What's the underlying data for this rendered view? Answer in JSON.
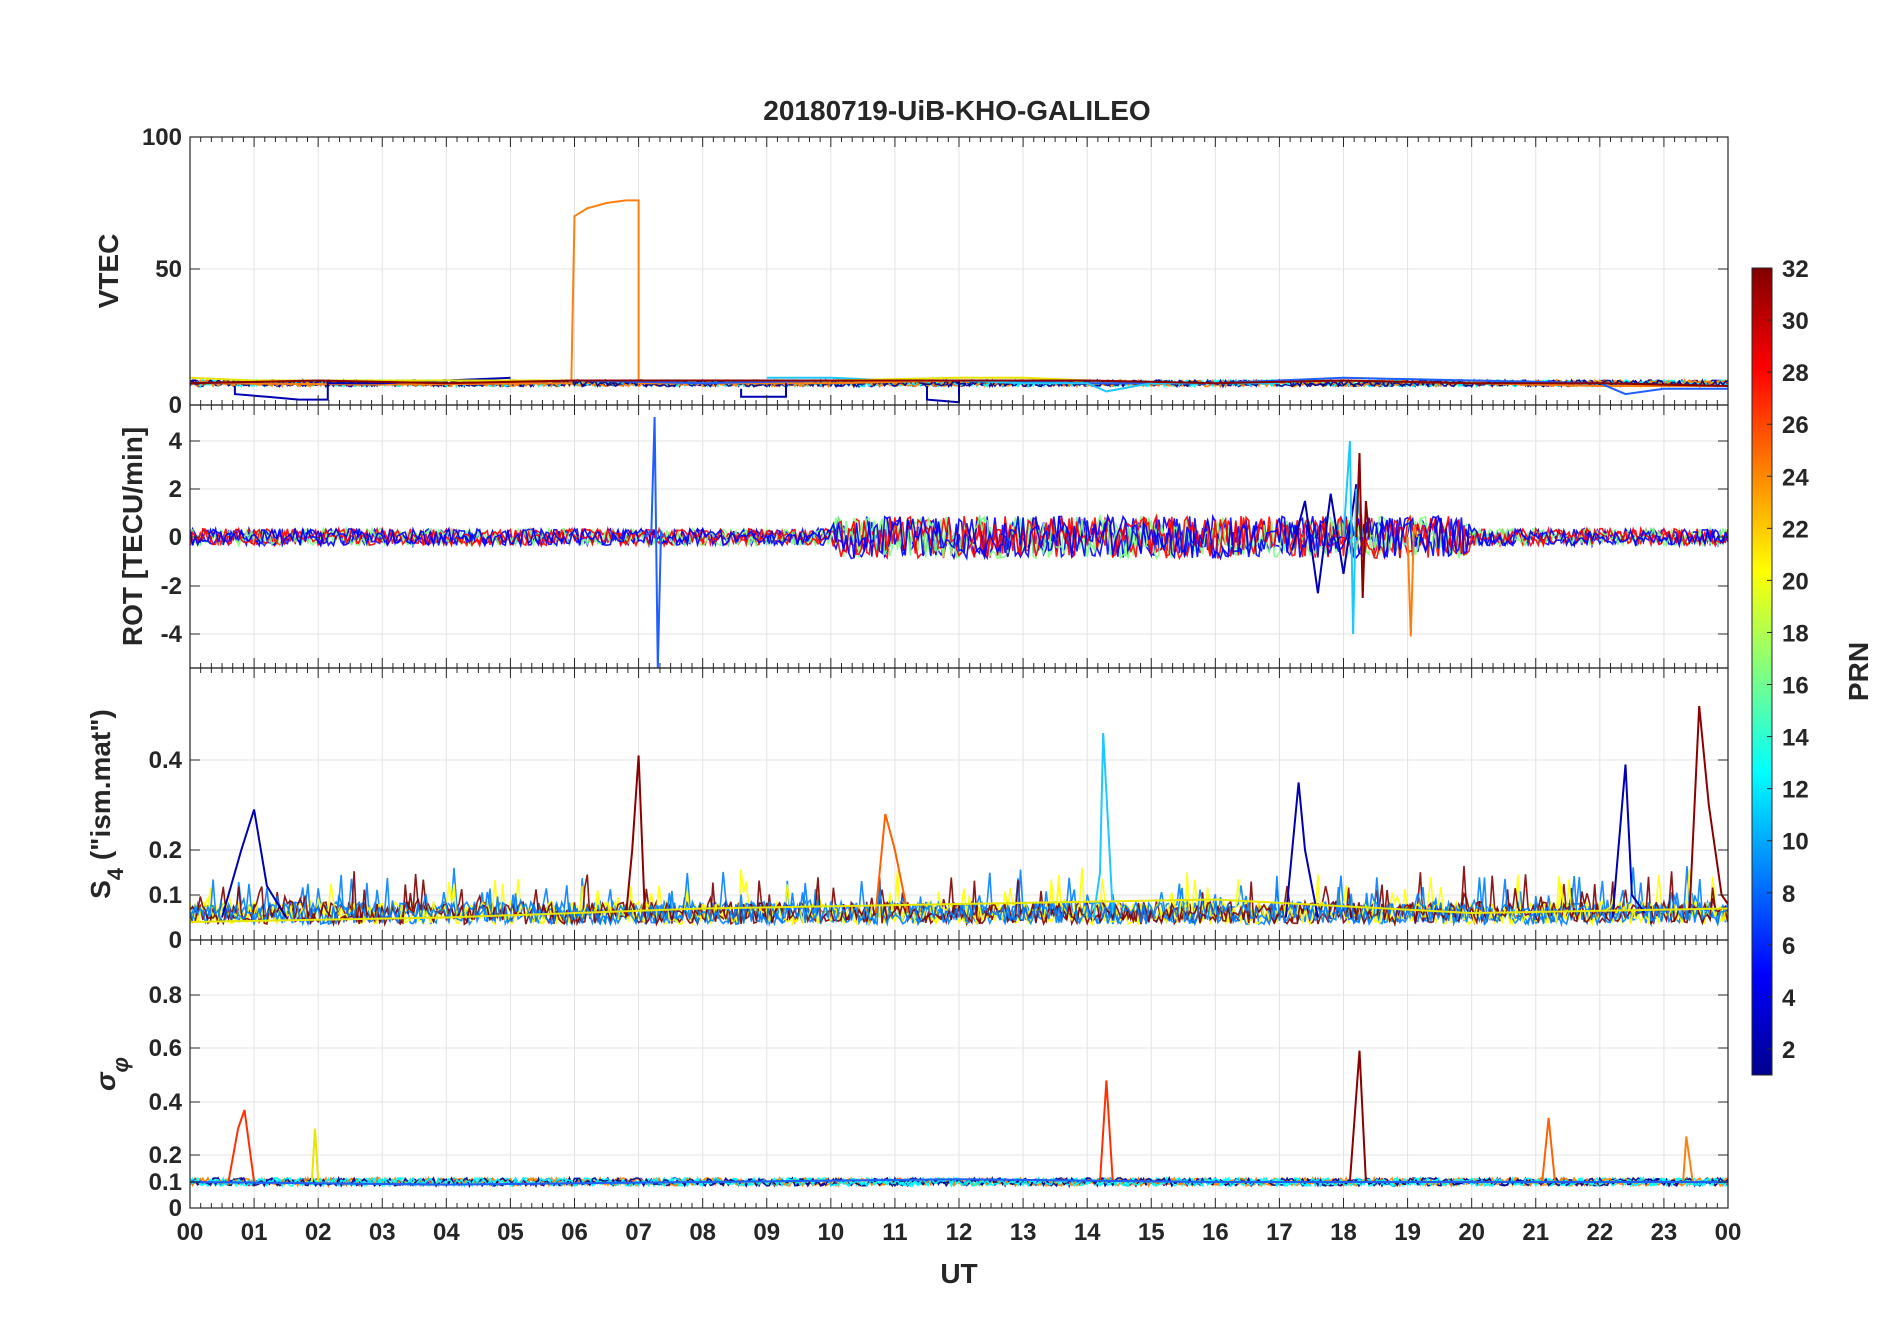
{
  "chart_data": [
    {
      "type": "line",
      "panel": "vtec",
      "title": "20180719-UiB-KHO-GALILEO",
      "ylabel": "VTEC",
      "xlim": [
        0,
        24
      ],
      "ylim": [
        0,
        100
      ],
      "yticks": [
        0,
        50,
        100
      ],
      "ytick_labels": [
        "0",
        "50",
        "100"
      ],
      "grid": true,
      "series": [
        {
          "color": "#ff7f0e",
          "x": [
            0,
            3,
            5.95,
            6.0,
            6.2,
            6.5,
            6.8,
            7.0,
            7.0,
            8,
            10,
            12,
            14,
            16,
            18,
            20,
            22,
            24
          ],
          "y": [
            8,
            7.5,
            8,
            70,
            73,
            75,
            76,
            76,
            8,
            8,
            8,
            9,
            8,
            8,
            9,
            8,
            7,
            7
          ]
        },
        {
          "color": "#0000b3",
          "x": [
            0.7,
            0.7,
            1.2,
            1.7,
            2.15,
            2.15,
            3,
            5
          ],
          "y": [
            7,
            4,
            3,
            2,
            2,
            8,
            8,
            10
          ]
        },
        {
          "color": "#0000b3",
          "x": [
            8.6,
            8.6,
            9.0,
            9.3,
            9.3
          ],
          "y": [
            6,
            3,
            3,
            3,
            8
          ]
        },
        {
          "color": "#0000b3",
          "x": [
            11.5,
            11.5,
            12.0,
            12.0,
            13
          ],
          "y": [
            7,
            2,
            1,
            9,
            9
          ]
        },
        {
          "color": "#1f5fff",
          "x": [
            0,
            2,
            4,
            6,
            8,
            10,
            12,
            14,
            16,
            18,
            20,
            22,
            22.4,
            23,
            24
          ],
          "y": [
            8,
            9,
            9,
            9,
            8,
            9,
            9,
            8,
            8,
            10,
            9,
            8,
            4,
            6,
            6
          ]
        },
        {
          "color": "#1ec8ff",
          "x": [
            9,
            10,
            11,
            12,
            13,
            14,
            14.3,
            15,
            16,
            17
          ],
          "y": [
            10,
            10,
            9,
            9,
            8,
            8,
            5,
            8,
            8,
            8
          ]
        },
        {
          "color": "#e6e600",
          "x": [
            0,
            1,
            2,
            10,
            12,
            13,
            14
          ],
          "y": [
            10,
            9,
            9,
            9,
            10,
            10,
            9
          ]
        },
        {
          "color": "#8b0000",
          "x": [
            0,
            2,
            4,
            6,
            8,
            10,
            12,
            14,
            16,
            18,
            20,
            22,
            24
          ],
          "y": [
            8,
            9,
            8,
            9,
            9,
            9,
            9,
            9,
            8,
            9,
            8,
            8,
            7
          ]
        }
      ]
    },
    {
      "type": "line",
      "panel": "rot",
      "ylabel": "ROT [TECU/min]",
      "xlim": [
        0,
        24
      ],
      "ylim": [
        -5.5,
        5
      ],
      "yticks": [
        -4,
        -2,
        0,
        2,
        4
      ],
      "ytick_labels": [
        "-4",
        "-2",
        "0",
        "2",
        "4"
      ],
      "grid": true,
      "series": [
        {
          "color": "#1f5fff",
          "x": [
            7.1,
            7.2,
            7.25,
            7.3,
            7.35,
            7.4
          ],
          "y": [
            0,
            0.3,
            5,
            -5.5,
            0.2,
            0
          ]
        },
        {
          "color": "#0000b3",
          "x": [
            17.2,
            17.4,
            17.6,
            17.8,
            18.0,
            18.2
          ],
          "y": [
            -0.5,
            1.5,
            -2.3,
            1.8,
            -1.5,
            2.2
          ]
        },
        {
          "color": "#1ec8ff",
          "x": [
            18.0,
            18.1,
            18.15,
            18.2,
            18.3
          ],
          "y": [
            0,
            4,
            -4,
            2,
            0
          ]
        },
        {
          "color": "#8b0000",
          "x": [
            18.2,
            18.25,
            18.3,
            18.35,
            18.4
          ],
          "y": [
            0,
            3.5,
            -2.5,
            1.5,
            0
          ]
        },
        {
          "color": "#ff7f0e",
          "x": [
            19.0,
            19.05,
            19.1,
            19.15
          ],
          "y": [
            0,
            -4.1,
            0.5,
            0
          ]
        }
      ]
    },
    {
      "type": "line",
      "panel": "s4",
      "ylabel": "S4 (\"ism.mat\")",
      "xlim": [
        0,
        24
      ],
      "ylim": [
        0,
        0.6
      ],
      "yticks": [
        0,
        0.1,
        0.2,
        0.4
      ],
      "ytick_labels": [
        "0",
        "0.1",
        "0.2",
        "0.4"
      ],
      "grid": true,
      "series": [
        {
          "color": "#0000b3",
          "x": [
            0.5,
            0.8,
            1.0,
            1.2,
            1.5
          ],
          "y": [
            0.05,
            0.2,
            0.29,
            0.12,
            0.05
          ]
        },
        {
          "color": "#8b0000",
          "x": [
            6.8,
            6.9,
            7.0,
            7.1
          ],
          "y": [
            0.05,
            0.2,
            0.41,
            0.05
          ]
        },
        {
          "color": "#ff6000",
          "x": [
            10.7,
            10.85,
            11.0,
            11.2
          ],
          "y": [
            0.06,
            0.28,
            0.2,
            0.06
          ]
        },
        {
          "color": "#1ec8ff",
          "x": [
            14.1,
            14.2,
            14.25,
            14.4
          ],
          "y": [
            0.05,
            0.15,
            0.46,
            0.06
          ]
        },
        {
          "color": "#0000b3",
          "x": [
            17.1,
            17.3,
            17.4,
            17.6
          ],
          "y": [
            0.05,
            0.35,
            0.2,
            0.05
          ]
        },
        {
          "color": "#0000b3",
          "x": [
            22.2,
            22.4,
            22.5,
            22.7
          ],
          "y": [
            0.05,
            0.39,
            0.1,
            0.06
          ]
        },
        {
          "color": "#8b0000",
          "x": [
            23.4,
            23.55,
            23.7,
            23.9,
            24.0
          ],
          "y": [
            0.06,
            0.52,
            0.3,
            0.1,
            0.08
          ]
        },
        {
          "color": "#e6e600",
          "x": [
            0,
            4,
            8,
            12,
            16,
            20,
            24
          ],
          "y": [
            0.04,
            0.05,
            0.07,
            0.08,
            0.09,
            0.06,
            0.07
          ]
        }
      ]
    },
    {
      "type": "line",
      "panel": "sigma_phi",
      "ylabel": "σφ",
      "xlabel": "UT",
      "xlim": [
        0,
        24
      ],
      "ylim": [
        0,
        1
      ],
      "yticks": [
        0,
        0.1,
        0.2,
        0.4,
        0.6,
        0.8
      ],
      "ytick_labels": [
        "0",
        "0.1",
        "0.2",
        "0.4",
        "0.6",
        "0.8"
      ],
      "xticks": [
        0,
        1,
        2,
        3,
        4,
        5,
        6,
        7,
        8,
        9,
        10,
        11,
        12,
        13,
        14,
        15,
        16,
        17,
        18,
        19,
        20,
        21,
        22,
        23,
        24
      ],
      "xtick_labels": [
        "00",
        "01",
        "02",
        "03",
        "04",
        "05",
        "06",
        "07",
        "08",
        "09",
        "10",
        "11",
        "12",
        "13",
        "14",
        "15",
        "16",
        "17",
        "18",
        "19",
        "20",
        "21",
        "22",
        "23",
        "00"
      ],
      "grid": true,
      "series": [
        {
          "color": "#ff3000",
          "x": [
            0.6,
            0.75,
            0.85,
            1.0
          ],
          "y": [
            0.1,
            0.3,
            0.37,
            0.1
          ]
        },
        {
          "color": "#e6e600",
          "x": [
            1.9,
            1.95,
            2.0
          ],
          "y": [
            0.1,
            0.3,
            0.1
          ]
        },
        {
          "color": "#ff3000",
          "x": [
            14.2,
            14.3,
            14.4
          ],
          "y": [
            0.1,
            0.48,
            0.1
          ]
        },
        {
          "color": "#8b0000",
          "x": [
            18.1,
            18.25,
            18.35
          ],
          "y": [
            0.1,
            0.59,
            0.1
          ]
        },
        {
          "color": "#ff6000",
          "x": [
            21.1,
            21.2,
            21.3
          ],
          "y": [
            0.1,
            0.34,
            0.1
          ]
        },
        {
          "color": "#ff7f0e",
          "x": [
            23.3,
            23.35,
            23.45
          ],
          "y": [
            0.1,
            0.27,
            0.1
          ]
        },
        {
          "color": "#1f5fff",
          "x": [
            0,
            4,
            8,
            12,
            16,
            20,
            24
          ],
          "y": [
            0.1,
            0.09,
            0.1,
            0.11,
            0.1,
            0.1,
            0.1
          ]
        }
      ]
    }
  ],
  "colorbar": {
    "label": "PRN",
    "range": [
      1,
      32
    ],
    "ticks": [
      2,
      4,
      6,
      8,
      10,
      12,
      14,
      16,
      18,
      20,
      22,
      24,
      26,
      28,
      30,
      32
    ],
    "tick_labels": [
      "2",
      "4",
      "6",
      "8",
      "10",
      "12",
      "14",
      "16",
      "18",
      "20",
      "22",
      "24",
      "26",
      "28",
      "30",
      "32"
    ],
    "colormap": "jet",
    "colors": [
      "#00008f",
      "#0000ff",
      "#0080ff",
      "#00ffff",
      "#80ff80",
      "#ffff00",
      "#ff8000",
      "#ff0000",
      "#800000"
    ]
  }
}
